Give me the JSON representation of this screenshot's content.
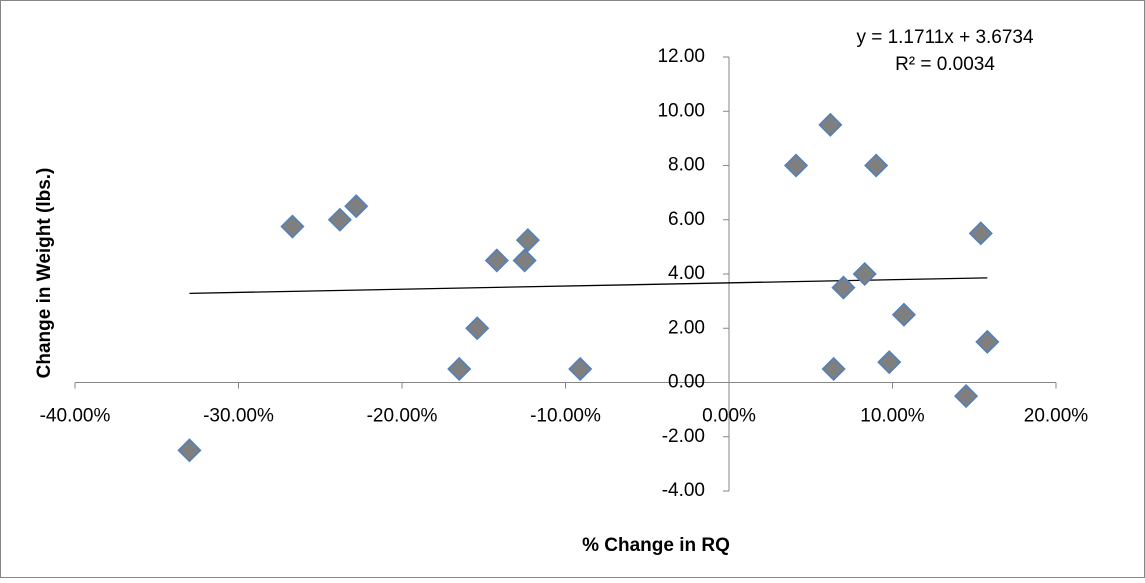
{
  "chart_data": {
    "type": "scatter",
    "x_label": "% Change in RQ",
    "y_label": "Change in Weight (lbs.)",
    "series": [
      {
        "color": "#7f7f7f",
        "x": [
          -0.33,
          -0.267,
          -0.238,
          -0.228,
          -0.165,
          -0.154,
          -0.142,
          -0.125,
          -0.123,
          -0.091,
          0.041,
          0.062,
          0.064,
          0.07,
          0.083,
          0.09,
          0.098,
          0.107,
          0.145,
          0.154,
          0.158
        ],
        "values": [
          -2.5,
          5.75,
          6.0,
          6.5,
          0.5,
          2.0,
          4.5,
          4.5,
          5.25,
          0.5,
          8.0,
          9.5,
          0.5,
          3.5,
          4.0,
          8.0,
          0.75,
          2.5,
          -0.5,
          5.5,
          1.5
        ]
      }
    ],
    "trendline": {
      "slope": 1.1711,
      "intercept": 3.6734,
      "equation": "y = 1.1711x + 3.6734",
      "r_squared": 0.0034,
      "r_squared_label": "R² = 0.0034"
    },
    "xlim": [
      -0.4,
      0.2
    ],
    "xticks": [
      {
        "value": -0.4,
        "label": "-40.00%"
      },
      {
        "value": -0.3,
        "label": "-30.00%"
      },
      {
        "value": -0.2,
        "label": "-20.00%"
      },
      {
        "value": -0.1,
        "label": "-10.00%"
      },
      {
        "value": 0,
        "label": "0.00%"
      },
      {
        "value": 0.1,
        "label": "10.00%"
      },
      {
        "value": 0.2,
        "label": "20.00%"
      }
    ],
    "ylim": [
      -4,
      12
    ],
    "yticks": [
      {
        "value": -4,
        "label": "-4.00"
      },
      {
        "value": -2,
        "label": "-2.00"
      },
      {
        "value": 0,
        "label": "0.00"
      },
      {
        "value": 2,
        "label": "2.00"
      },
      {
        "value": 4,
        "label": "4.00"
      },
      {
        "value": 6,
        "label": "6.00"
      },
      {
        "value": 8,
        "label": "8.00"
      },
      {
        "value": 10,
        "label": "10.00"
      },
      {
        "value": 12,
        "label": "12.00"
      }
    ]
  }
}
